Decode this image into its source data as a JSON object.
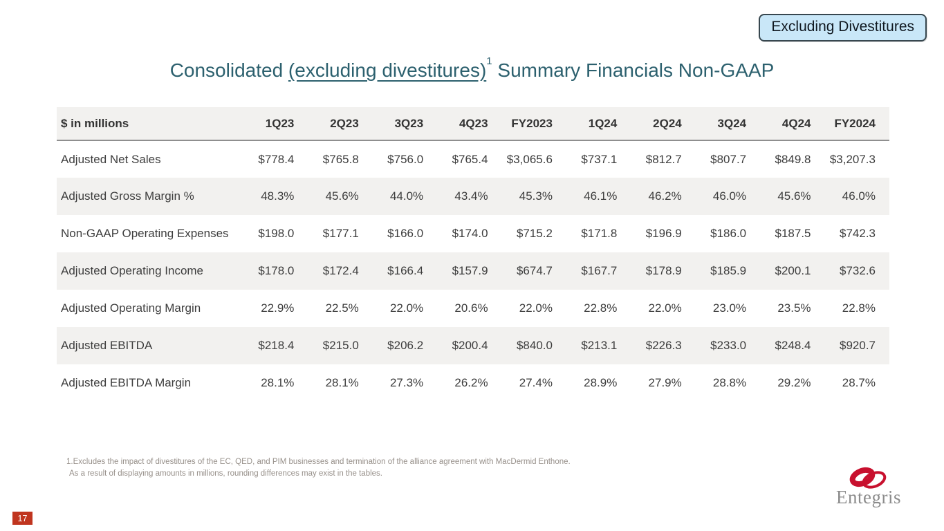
{
  "badge": {
    "label": "Excluding Divestitures"
  },
  "title": {
    "part1": "Consolidated ",
    "underlined": "(excluding divestitures)",
    "superscript": "1",
    "part2": " Summary Financials Non-GAAP"
  },
  "table": {
    "unit_label": "$ in millions",
    "columns": [
      "1Q23",
      "2Q23",
      "3Q23",
      "4Q23",
      "FY2023",
      "1Q24",
      "2Q24",
      "3Q24",
      "4Q24",
      "FY2024"
    ],
    "rows": [
      {
        "label": "Adjusted Net Sales",
        "values": [
          "$778.4",
          "$765.8",
          "$756.0",
          "$765.4",
          "$3,065.6",
          "$737.1",
          "$812.7",
          "$807.7",
          "$849.8",
          "$3,207.3"
        ]
      },
      {
        "label": "Adjusted Gross Margin %",
        "values": [
          "48.3%",
          "45.6%",
          "44.0%",
          "43.4%",
          "45.3%",
          "46.1%",
          "46.2%",
          "46.0%",
          "45.6%",
          "46.0%"
        ]
      },
      {
        "label": "Non-GAAP Operating Expenses",
        "values": [
          "$198.0",
          "$177.1",
          "$166.0",
          "$174.0",
          "$715.2",
          "$171.8",
          "$196.9",
          "$186.0",
          "$187.5",
          "$742.3"
        ]
      },
      {
        "label": "Adjusted Operating Income",
        "values": [
          "$178.0",
          "$172.4",
          "$166.4",
          "$157.9",
          "$674.7",
          "$167.7",
          "$178.9",
          "$185.9",
          "$200.1",
          "$732.6"
        ]
      },
      {
        "label": "Adjusted Operating Margin",
        "values": [
          "22.9%",
          "22.5%",
          "22.0%",
          "20.6%",
          "22.0%",
          "22.8%",
          "22.0%",
          "23.0%",
          "23.5%",
          "22.8%"
        ]
      },
      {
        "label": "Adjusted EBITDA",
        "values": [
          "$218.4",
          "$215.0",
          "$206.2",
          "$200.4",
          "$840.0",
          "$213.1",
          "$226.3",
          "$233.0",
          "$248.4",
          "$920.7"
        ]
      },
      {
        "label": "Adjusted EBITDA Margin",
        "values": [
          "28.1%",
          "28.1%",
          "27.3%",
          "26.2%",
          "27.4%",
          "28.9%",
          "27.9%",
          "28.8%",
          "29.2%",
          "28.7%"
        ]
      }
    ]
  },
  "footnotes": {
    "line1": "1.Excludes the impact of divestitures of the EC, QED, and PIM businesses and termination of the alliance agreement with MacDermid Enthone.",
    "line2": "As a result of displaying amounts in millions, rounding differences may exist in the tables."
  },
  "footer": {
    "page_number": "17",
    "logo_text": "Entegris"
  },
  "colors": {
    "title": "#2C606E",
    "badge_bg": "#C9E7F8",
    "badge_border": "#37474F",
    "row_stripe": "#F2F1EF",
    "page_box": "#C0351F",
    "logo_red": "#C8102E",
    "logo_gray": "#8C8C8C"
  }
}
